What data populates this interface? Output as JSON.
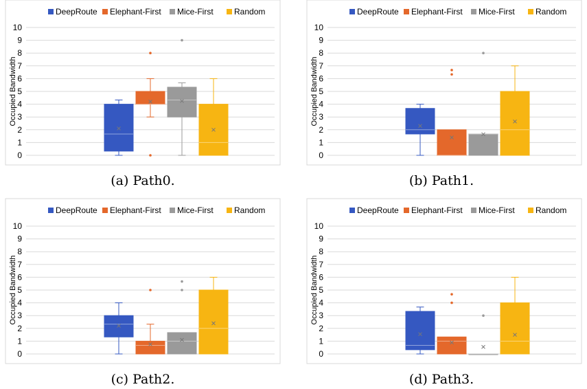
{
  "figure": {
    "panels": [
      {
        "caption": "(a) Path0.",
        "legend": [
          "DeepRoute",
          "Elephant-First",
          "Mice-First",
          "Random"
        ],
        "ylabel": "Occupied Bandwidth",
        "yticks": [
          "0",
          "1",
          "2",
          "3",
          "4",
          "5",
          "6",
          "7",
          "8",
          "9",
          "10"
        ]
      },
      {
        "caption": "(b) Path1.",
        "legend": [
          "DeepRoute",
          "Elephant-First",
          "Mice-First",
          "Random"
        ],
        "ylabel": "Occupied Bandwidth",
        "yticks": [
          "0",
          "1",
          "2",
          "3",
          "4",
          "5",
          "6",
          "7",
          "8",
          "9",
          "10"
        ]
      },
      {
        "caption": "(c) Path2.",
        "legend": [
          "DeepRoute",
          "Elephant-First",
          "Mice-First",
          "Random"
        ],
        "ylabel": "Occupied Bandwidth",
        "yticks": [
          "0",
          "1",
          "2",
          "3",
          "4",
          "5",
          "6",
          "7",
          "8",
          "9",
          "10"
        ]
      },
      {
        "caption": "(d) Path3.",
        "legend": [
          "DeepRoute",
          "Elephant-First",
          "Mice-First",
          "Random"
        ],
        "ylabel": "Occupied Bandwidth",
        "yticks": [
          "0",
          "1",
          "2",
          "3",
          "4",
          "5",
          "6",
          "7",
          "8",
          "9",
          "10"
        ]
      }
    ]
  },
  "colors": {
    "DeepRoute": "#3558c1",
    "Elephant-First": "#e4682b",
    "Mice-First": "#9a9a9a",
    "Random": "#f7b512",
    "grid": "#d9d9d9",
    "text": "#000000"
  },
  "chart_data": [
    {
      "type": "box",
      "ylabel": "Occupied Bandwidth",
      "ylim": [
        0,
        10
      ],
      "grid": true,
      "legend_position": "top",
      "series": [
        {
          "name": "DeepRoute",
          "min": 0,
          "q1": 0.33,
          "median": 1.67,
          "q3": 4.0,
          "max": 4.33,
          "mean": 2.1,
          "outliers": []
        },
        {
          "name": "Elephant-First",
          "min": 3.0,
          "q1": 4.0,
          "median": 4.0,
          "q3": 5.0,
          "max": 6.0,
          "mean": 4.2,
          "outliers": [
            8.0,
            0.0
          ]
        },
        {
          "name": "Mice-First",
          "min": 0,
          "q1": 3.0,
          "median": 4.33,
          "q3": 5.33,
          "max": 5.67,
          "mean": 4.25,
          "outliers": [
            9.0
          ]
        },
        {
          "name": "Random",
          "min": 0,
          "q1": 0,
          "median": 1.0,
          "q3": 4.0,
          "max": 6.0,
          "mean": 2.0,
          "outliers": []
        }
      ]
    },
    {
      "type": "box",
      "ylabel": "Occupied Bandwidth",
      "ylim": [
        0,
        10
      ],
      "grid": true,
      "legend_position": "top",
      "series": [
        {
          "name": "DeepRoute",
          "min": 0,
          "q1": 1.67,
          "median": 2.0,
          "q3": 3.67,
          "max": 4.0,
          "mean": 2.3,
          "outliers": []
        },
        {
          "name": "Elephant-First",
          "min": 0,
          "q1": 0,
          "median": 0,
          "q3": 2.0,
          "max": 2.0,
          "mean": 1.4,
          "outliers": [
            6.67,
            6.33
          ]
        },
        {
          "name": "Mice-First",
          "min": 0,
          "q1": 0,
          "median": 1.67,
          "q3": 1.67,
          "max": 1.67,
          "mean": 1.65,
          "outliers": [
            8.0
          ]
        },
        {
          "name": "Random",
          "min": 0,
          "q1": 0,
          "median": 2.0,
          "q3": 5.0,
          "max": 7.0,
          "mean": 2.65,
          "outliers": []
        }
      ]
    },
    {
      "type": "box",
      "ylabel": "Occupied Bandwidth",
      "ylim": [
        0,
        10
      ],
      "grid": true,
      "legend_position": "top",
      "series": [
        {
          "name": "DeepRoute",
          "min": 0,
          "q1": 1.33,
          "median": 2.33,
          "q3": 3.0,
          "max": 4.0,
          "mean": 2.2,
          "outliers": []
        },
        {
          "name": "Elephant-First",
          "min": 0,
          "q1": 0,
          "median": 0.67,
          "q3": 1.0,
          "max": 2.33,
          "mean": 0.75,
          "outliers": [
            5.0
          ]
        },
        {
          "name": "Mice-First",
          "min": 0,
          "q1": 0,
          "median": 1.0,
          "q3": 1.67,
          "max": 1.67,
          "mean": 1.1,
          "outliers": [
            5.67,
            5.0
          ]
        },
        {
          "name": "Random",
          "min": 0,
          "q1": 0,
          "median": 2.0,
          "q3": 5.0,
          "max": 6.0,
          "mean": 2.4,
          "outliers": []
        }
      ]
    },
    {
      "type": "box",
      "ylabel": "Occupied Bandwidth",
      "ylim": [
        0,
        10
      ],
      "grid": true,
      "legend_position": "top",
      "series": [
        {
          "name": "DeepRoute",
          "min": 0,
          "q1": 0.33,
          "median": 0.67,
          "q3": 3.33,
          "max": 3.67,
          "mean": 1.55,
          "outliers": []
        },
        {
          "name": "Elephant-First",
          "min": 0,
          "q1": 0,
          "median": 1.0,
          "q3": 1.33,
          "max": 1.33,
          "mean": 0.9,
          "outliers": [
            4.67,
            4.0
          ]
        },
        {
          "name": "Mice-First",
          "min": 0,
          "q1": 0,
          "median": 0,
          "q3": 0,
          "max": 0,
          "mean": 0.55,
          "outliers": [
            3.0
          ]
        },
        {
          "name": "Random",
          "min": 0,
          "q1": 0,
          "median": 1.0,
          "q3": 4.0,
          "max": 6.0,
          "mean": 1.5,
          "outliers": []
        }
      ]
    }
  ]
}
